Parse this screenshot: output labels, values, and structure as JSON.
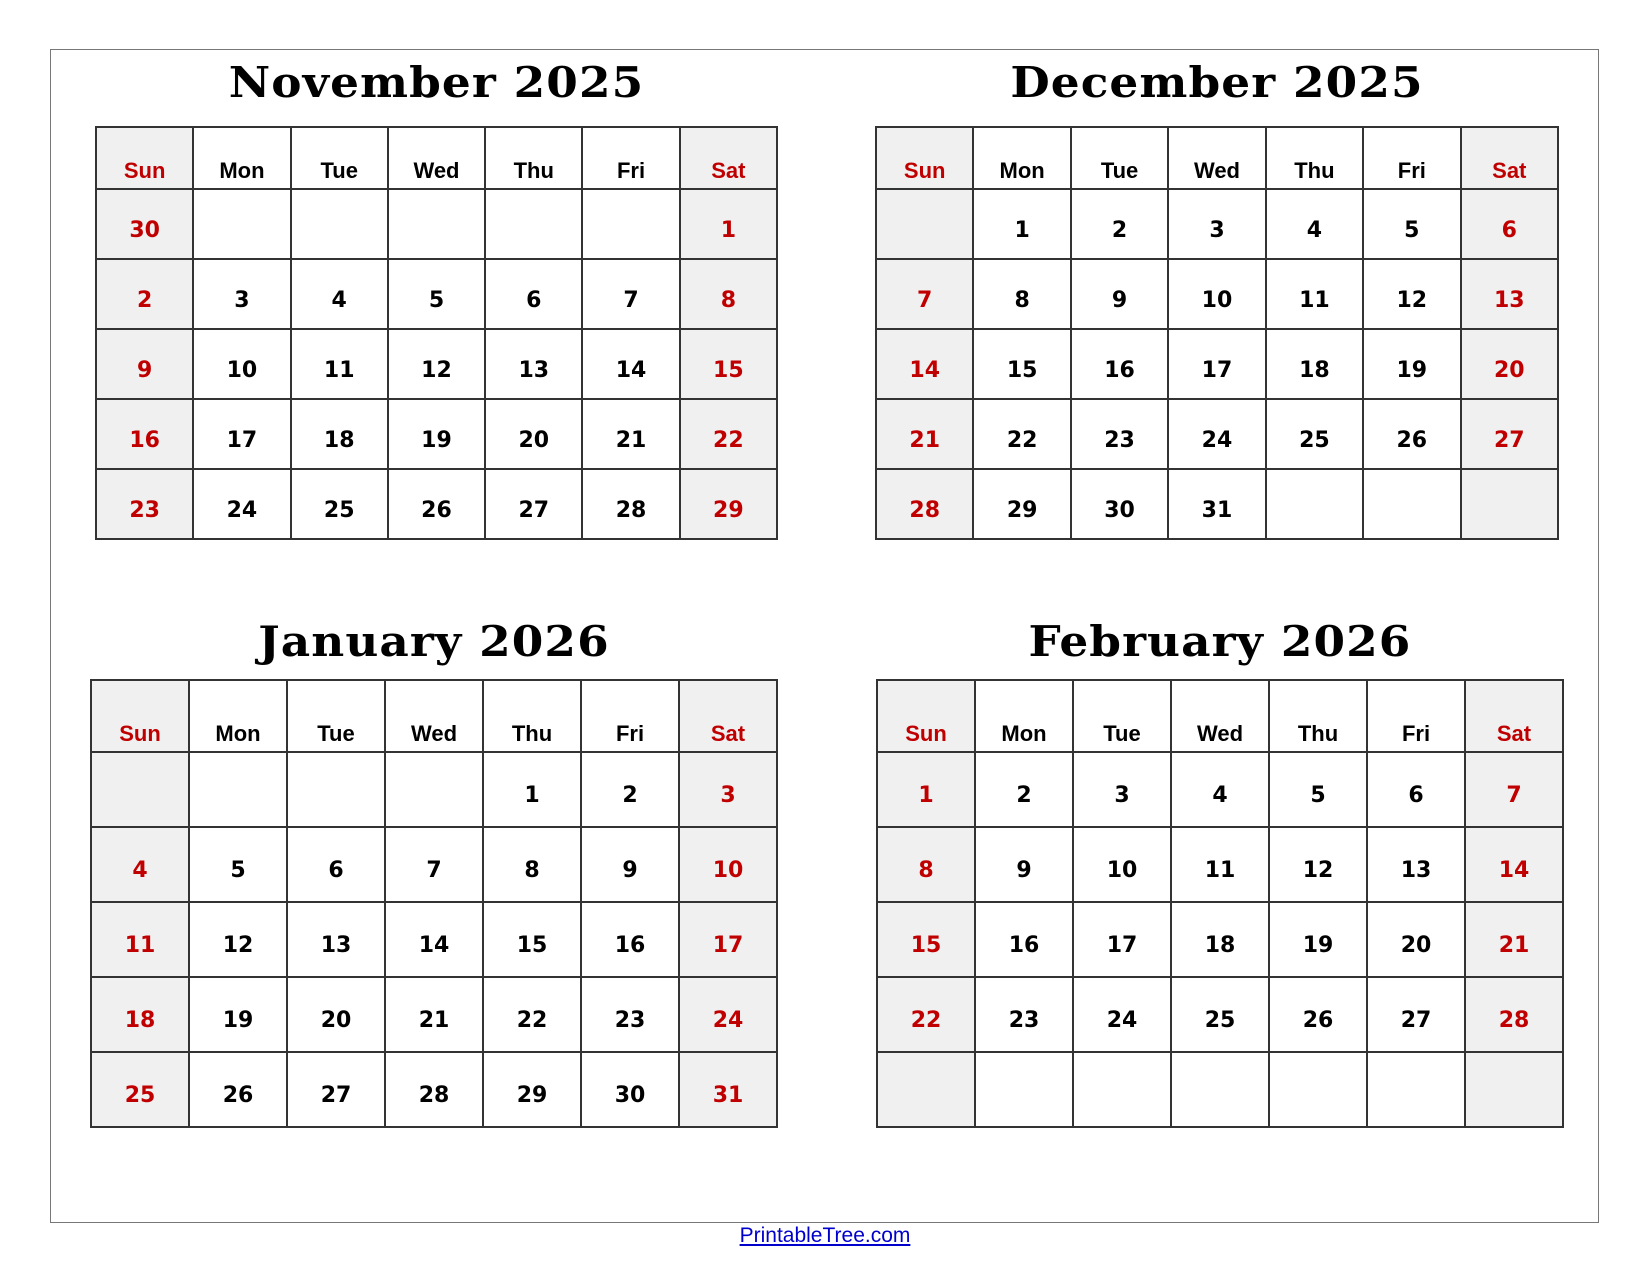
{
  "weekdays": [
    "Sun",
    "Mon",
    "Tue",
    "Wed",
    "Thu",
    "Fri",
    "Sat"
  ],
  "colors": {
    "weekend_text": "#c00000",
    "weekend_fill": "#f0f0f0",
    "link": "#0000cc"
  },
  "months": [
    {
      "title": "November 2025",
      "weeks": [
        [
          "30",
          "",
          "",
          "",
          "",
          "",
          "1"
        ],
        [
          "2",
          "3",
          "4",
          "5",
          "6",
          "7",
          "8"
        ],
        [
          "9",
          "10",
          "11",
          "12",
          "13",
          "14",
          "15"
        ],
        [
          "16",
          "17",
          "18",
          "19",
          "20",
          "21",
          "22"
        ],
        [
          "23",
          "24",
          "25",
          "26",
          "27",
          "28",
          "29"
        ]
      ]
    },
    {
      "title": "December 2025",
      "weeks": [
        [
          "",
          "1",
          "2",
          "3",
          "4",
          "5",
          "6"
        ],
        [
          "7",
          "8",
          "9",
          "10",
          "11",
          "12",
          "13"
        ],
        [
          "14",
          "15",
          "16",
          "17",
          "18",
          "19",
          "20"
        ],
        [
          "21",
          "22",
          "23",
          "24",
          "25",
          "26",
          "27"
        ],
        [
          "28",
          "29",
          "30",
          "31",
          "",
          "",
          ""
        ]
      ]
    },
    {
      "title": "January 2026",
      "weeks": [
        [
          "",
          "",
          "",
          "",
          "1",
          "2",
          "3"
        ],
        [
          "4",
          "5",
          "6",
          "7",
          "8",
          "9",
          "10"
        ],
        [
          "11",
          "12",
          "13",
          "14",
          "15",
          "16",
          "17"
        ],
        [
          "18",
          "19",
          "20",
          "21",
          "22",
          "23",
          "24"
        ],
        [
          "25",
          "26",
          "27",
          "28",
          "29",
          "30",
          "31"
        ]
      ]
    },
    {
      "title": "February 2026",
      "weeks": [
        [
          "1",
          "2",
          "3",
          "4",
          "5",
          "6",
          "7"
        ],
        [
          "8",
          "9",
          "10",
          "11",
          "12",
          "13",
          "14"
        ],
        [
          "15",
          "16",
          "17",
          "18",
          "19",
          "20",
          "21"
        ],
        [
          "22",
          "23",
          "24",
          "25",
          "26",
          "27",
          "28"
        ],
        [
          "",
          "",
          "",
          "",
          "",
          "",
          ""
        ]
      ]
    }
  ],
  "footer": {
    "link_text": "PrintableTree.com"
  }
}
